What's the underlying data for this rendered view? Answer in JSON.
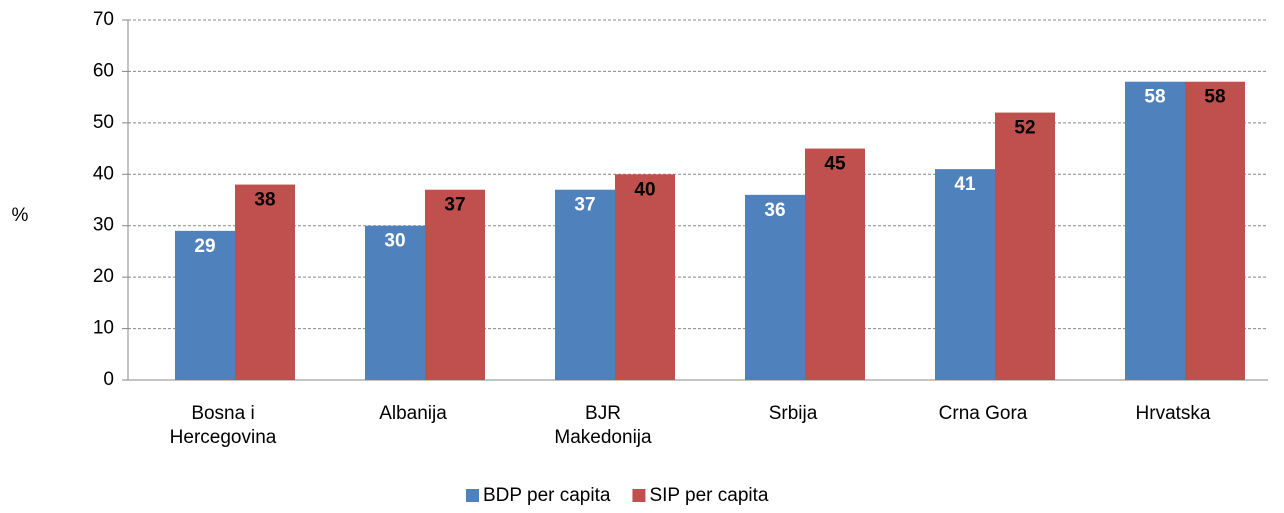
{
  "chart_data": {
    "type": "bar",
    "y_label": "%",
    "categories": [
      "Bosna i\nHercegovina",
      "Albanija",
      "BJR\nMakedonija",
      "Srbija",
      "Crna Gora",
      "Hrvatska"
    ],
    "series": [
      {
        "name": "BDP per capita",
        "color": "#4f81bd",
        "values": [
          29,
          30,
          37,
          36,
          41,
          58
        ]
      },
      {
        "name": "SIP per capita",
        "color": "#c0504d",
        "values": [
          38,
          37,
          40,
          45,
          52,
          58
        ]
      }
    ],
    "ylim": [
      0,
      70
    ],
    "yticks": [
      0,
      10,
      20,
      30,
      40,
      50,
      60,
      70
    ],
    "grid": true,
    "legend": "bottom"
  }
}
